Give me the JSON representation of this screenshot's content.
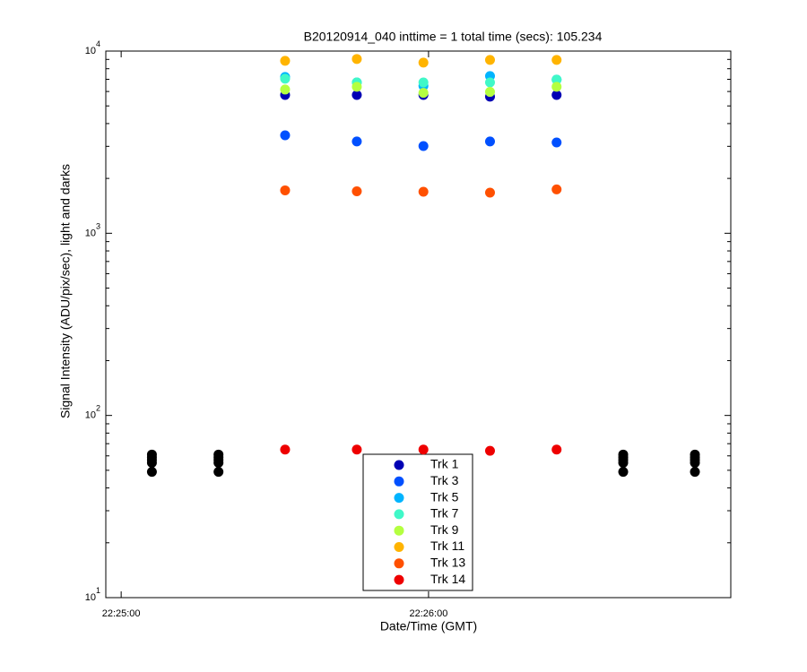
{
  "chart_data": {
    "type": "scatter",
    "title": "B20120914_040 inttime = 1 total time (secs): 105.234",
    "xlabel": "Date/Time (GMT)",
    "ylabel": "Signal Intensity (ADU/pix/sec), light and darks",
    "x": [
      "22:25:06",
      "22:25:19",
      "22:25:32",
      "22:25:46",
      "22:25:59",
      "22:26:12",
      "22:26:25",
      "22:26:38",
      "22:26:52"
    ],
    "xlim": [
      "22:24:57",
      "22:26:59"
    ],
    "xticks": [
      "22:25:00",
      "22:26:00"
    ],
    "ylim": [
      10,
      10000
    ],
    "yscale": "log",
    "yticks": [
      {
        "value": 10,
        "label": "10^1"
      },
      {
        "value": 100,
        "label": "10^2"
      },
      {
        "value": 1000,
        "label": "10^3"
      },
      {
        "value": 10000,
        "label": "10^4"
      }
    ],
    "legend": "bottom",
    "series": [
      {
        "name": "Trk 1",
        "color": "#0000b4",
        "values": [
          null,
          null,
          5740,
          5740,
          5740,
          5620,
          5740,
          null,
          null
        ]
      },
      {
        "name": "Trk 3",
        "color": "#0050ff",
        "values": [
          null,
          null,
          3450,
          3190,
          3010,
          3190,
          3150,
          null,
          null
        ]
      },
      {
        "name": "Trk 5",
        "color": "#00b4ff",
        "values": [
          null,
          null,
          7210,
          6730,
          6440,
          7290,
          6970,
          null,
          null
        ]
      },
      {
        "name": "Trk 7",
        "color": "#40f8c8",
        "values": [
          null,
          null,
          7050,
          6730,
          6730,
          6730,
          6970,
          null,
          null
        ]
      },
      {
        "name": "Trk 9",
        "color": "#b4ff40",
        "values": [
          null,
          null,
          6150,
          6370,
          5900,
          5970,
          6370,
          null,
          null
        ]
      },
      {
        "name": "Trk 11",
        "color": "#ffb400",
        "values": [
          null,
          null,
          8840,
          9050,
          8640,
          8940,
          8940,
          null,
          null
        ]
      },
      {
        "name": "Trk 13",
        "color": "#ff5000",
        "values": [
          null,
          null,
          1720,
          1700,
          1690,
          1670,
          1740,
          null,
          null
        ]
      },
      {
        "name": "Trk 14",
        "color": "#ee0000",
        "values": [
          null,
          null,
          65,
          65,
          65,
          64,
          65,
          null,
          null
        ]
      },
      {
        "color": "#000000",
        "values": [
          49,
          49,
          null,
          null,
          null,
          null,
          null,
          49,
          49
        ]
      },
      {
        "color": "#000000",
        "values": [
          55,
          55,
          null,
          null,
          null,
          null,
          null,
          55,
          55
        ]
      },
      {
        "color": "#000000",
        "values": [
          57,
          57,
          null,
          null,
          null,
          null,
          null,
          57,
          57
        ]
      },
      {
        "color": "#000000",
        "values": [
          59,
          59,
          null,
          null,
          null,
          null,
          null,
          59,
          59
        ]
      },
      {
        "color": "#000000",
        "values": [
          61,
          61,
          null,
          null,
          null,
          null,
          null,
          61,
          61
        ]
      }
    ]
  }
}
